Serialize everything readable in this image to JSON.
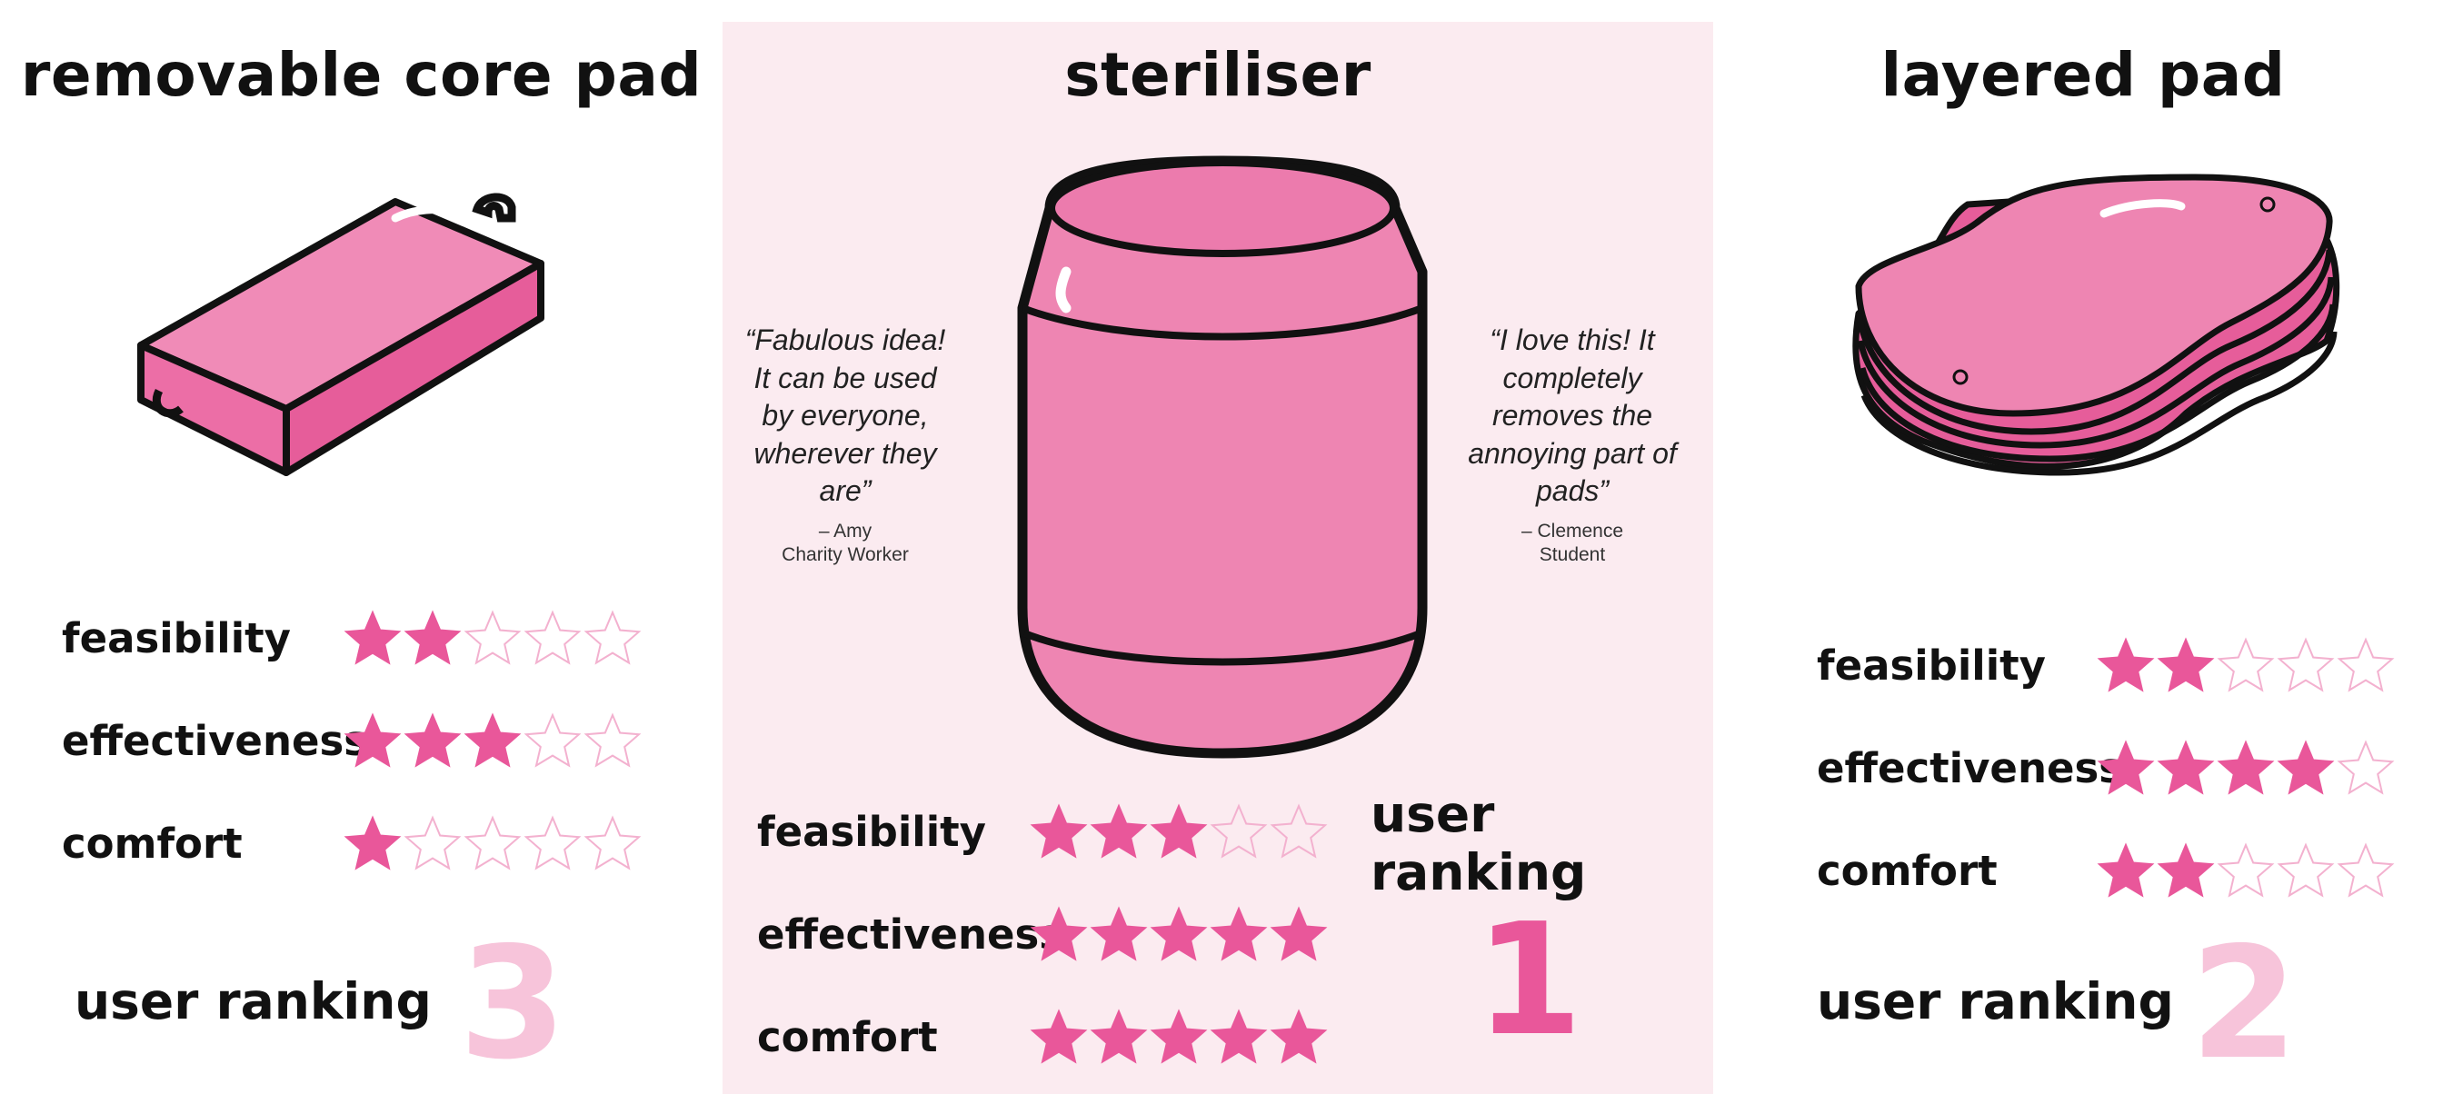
{
  "products": [
    {
      "title": "removable core pad",
      "illustration_icon": "removable-core-pad-icon",
      "ratings": [
        {
          "label": "feasibility",
          "stars": 2,
          "max": 5
        },
        {
          "label": "effectiveness",
          "stars": 3,
          "max": 5
        },
        {
          "label": "comfort",
          "stars": 1,
          "max": 5
        }
      ],
      "user_ranking_label": "user ranking",
      "user_ranking": "3",
      "ranking_color": "#f7c4da"
    },
    {
      "title": "steriliser",
      "illustration_icon": "steriliser-icon",
      "ratings": [
        {
          "label": "feasibility",
          "stars": 3,
          "max": 5
        },
        {
          "label": "effectiveness",
          "stars": 5,
          "max": 5
        },
        {
          "label": "comfort",
          "stars": 5,
          "max": 5
        }
      ],
      "user_ranking_label": "user ranking",
      "user_ranking": "1",
      "ranking_color": "#e9579a",
      "quotes": [
        {
          "text": "“Fabulous idea! It can be used by everyone, wherever they are”",
          "author": "– Amy",
          "role": "Charity Worker"
        },
        {
          "text": "“I love this! It completely removes the annoying part of pads”",
          "author": "– Clemence",
          "role": "Student"
        }
      ]
    },
    {
      "title": "layered pad",
      "illustration_icon": "layered-pad-icon",
      "ratings": [
        {
          "label": "feasibility",
          "stars": 2,
          "max": 5
        },
        {
          "label": "effectiveness",
          "stars": 4,
          "max": 5
        },
        {
          "label": "comfort",
          "stars": 2,
          "max": 5
        }
      ],
      "user_ranking_label": "user ranking",
      "user_ranking": "2",
      "ranking_color": "#f7c4da"
    }
  ],
  "colors": {
    "star_filled": "#e9579a",
    "star_empty_outline": "#f3b1cf",
    "pink_fill": "#ee85b2",
    "highlight_panel": "#fbebf0"
  }
}
